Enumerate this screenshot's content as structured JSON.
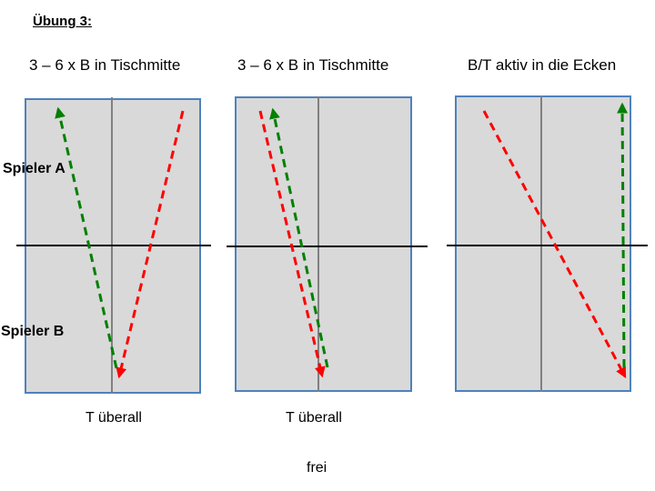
{
  "title": "Übung 3:",
  "player_a": "Spieler A",
  "player_b": "Spieler B",
  "columns": [
    {
      "title": "3 – 6 x B in Tischmitte",
      "caption": "T überall"
    },
    {
      "title": "3 – 6 x B in Tischmitte",
      "caption": "T überall"
    },
    {
      "title": "B/T aktiv in die Ecken",
      "caption": ""
    }
  ],
  "footer": "frei",
  "colors": {
    "table_fill": "#d9d9d9",
    "table_border": "#4f81bd",
    "center_line": "#808080",
    "net": "#000000",
    "arrow_red": "#ff0000",
    "arrow_green": "#008000"
  }
}
